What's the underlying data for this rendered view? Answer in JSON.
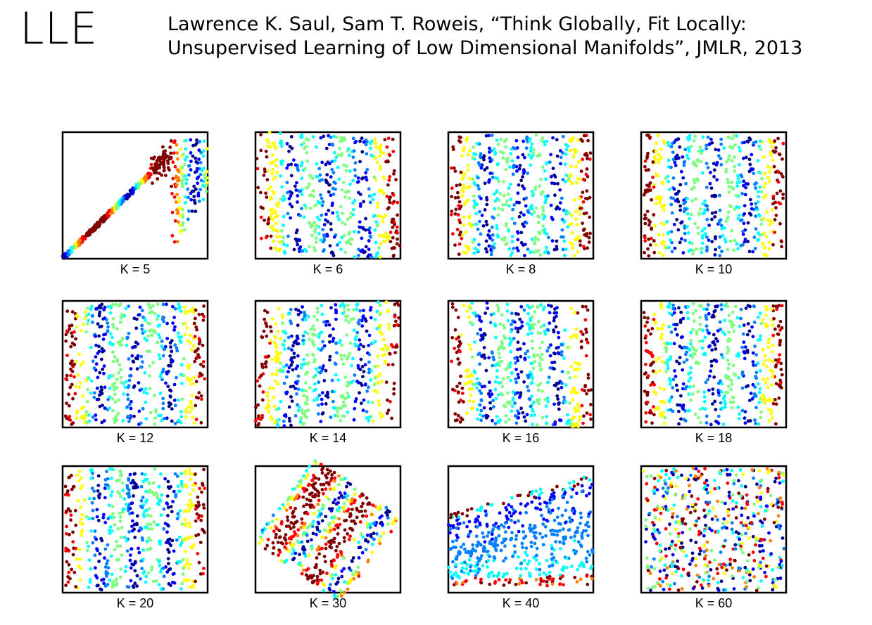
{
  "slide": {
    "title": "LLE",
    "citation_line1": "Lawrence K. Saul, Sam T. Roweis, “Think Globally, Fit Locally:",
    "citation_line2": "Unsupervised Learning of Low Dimensional Manifolds”, JMLR, 2013"
  },
  "colormap": [
    "#00008f",
    "#0000ff",
    "#007fff",
    "#00ffff",
    "#7fff7f",
    "#ffff00",
    "#ff7f00",
    "#ff0000",
    "#800000"
  ],
  "chart_data": [
    {
      "type": "scatter",
      "label": "K = 5",
      "k": 5
    },
    {
      "type": "scatter",
      "label": "K = 6",
      "k": 6
    },
    {
      "type": "scatter",
      "label": "K = 8",
      "k": 8
    },
    {
      "type": "scatter",
      "label": "K = 10",
      "k": 10
    },
    {
      "type": "scatter",
      "label": "K = 12",
      "k": 12
    },
    {
      "type": "scatter",
      "label": "K = 14",
      "k": 14
    },
    {
      "type": "scatter",
      "label": "K = 16",
      "k": 16
    },
    {
      "type": "scatter",
      "label": "K = 18",
      "k": 18
    },
    {
      "type": "scatter",
      "label": "K = 20",
      "k": 20
    },
    {
      "type": "scatter",
      "label": "K = 30",
      "k": 30
    },
    {
      "type": "scatter",
      "label": "K = 40",
      "k": 40
    },
    {
      "type": "scatter",
      "label": "K = 60",
      "k": 60
    }
  ]
}
